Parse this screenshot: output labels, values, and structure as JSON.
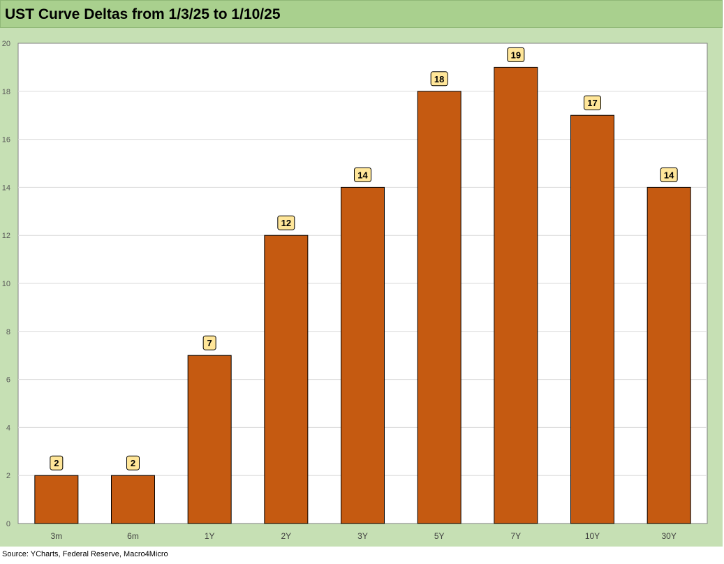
{
  "header": {
    "title": "UST Curve Deltas from 1/3/25 to 1/10/25"
  },
  "footer": {
    "source": "Source: YCharts, Federal Reserve, Macro4Micro"
  },
  "colors": {
    "bar": "#c55a11",
    "label_bg": "#ffe699",
    "panel": "#c6e0b4",
    "title_bar": "#a9d08e"
  },
  "chart_data": {
    "type": "bar",
    "title": "UST Curve Deltas from 1/3/25 to 1/10/25",
    "categories": [
      "3m",
      "6m",
      "1Y",
      "2Y",
      "3Y",
      "5Y",
      "7Y",
      "10Y",
      "30Y"
    ],
    "values": [
      2,
      2,
      7,
      12,
      14,
      18,
      19,
      17,
      14
    ],
    "ylim": [
      0,
      20
    ],
    "yticks": [
      0,
      2,
      4,
      6,
      8,
      10,
      12,
      14,
      16,
      18,
      20
    ],
    "grid": true,
    "legend": "none"
  }
}
